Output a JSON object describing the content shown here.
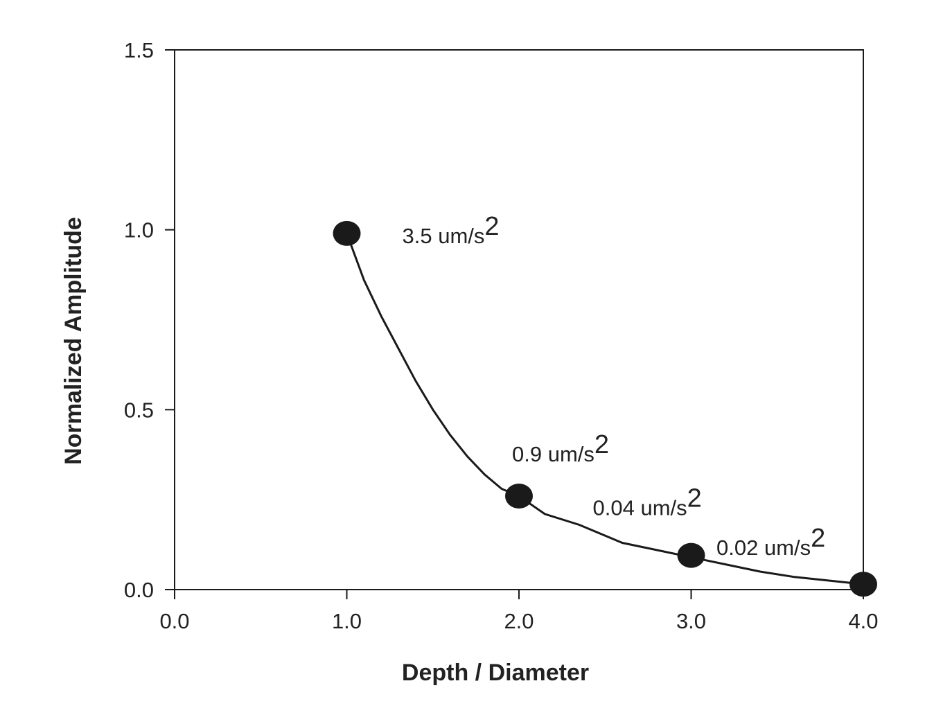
{
  "chart_data": {
    "type": "line",
    "xlabel": "Depth / Diameter",
    "ylabel": "Normalized Amplitude",
    "xlim": [
      0,
      4
    ],
    "ylim": [
      0,
      1.5
    ],
    "xticks": [
      "0.0",
      "1.0",
      "2.0",
      "3.0",
      "4.0"
    ],
    "yticks": [
      "0.0",
      "0.5",
      "1.0",
      "1.5"
    ],
    "grid": false,
    "line_color": "#1a1a1a",
    "marker_color": "#1a1a1a",
    "curve": {
      "x": [
        1.0,
        1.1,
        1.2,
        1.3,
        1.4,
        1.5,
        1.6,
        1.7,
        1.8,
        1.9,
        2.0,
        2.15,
        2.35,
        2.6,
        2.8,
        3.0,
        3.2,
        3.4,
        3.6,
        3.8,
        4.0
      ],
      "y": [
        0.99,
        0.86,
        0.76,
        0.67,
        0.58,
        0.5,
        0.43,
        0.37,
        0.32,
        0.28,
        0.26,
        0.21,
        0.18,
        0.13,
        0.11,
        0.09,
        0.07,
        0.05,
        0.035,
        0.025,
        0.015
      ]
    },
    "points": [
      {
        "x": 1.0,
        "y": 0.99,
        "label": "3.5 um/s",
        "sup": "2"
      },
      {
        "x": 2.0,
        "y": 0.26,
        "label": "0.9 um/s",
        "sup": "2"
      },
      {
        "x": 3.0,
        "y": 0.095,
        "label": "0.04 um/s",
        "sup": "2"
      },
      {
        "x": 4.0,
        "y": 0.015,
        "label": "0.02 um/s",
        "sup": "2"
      }
    ]
  }
}
